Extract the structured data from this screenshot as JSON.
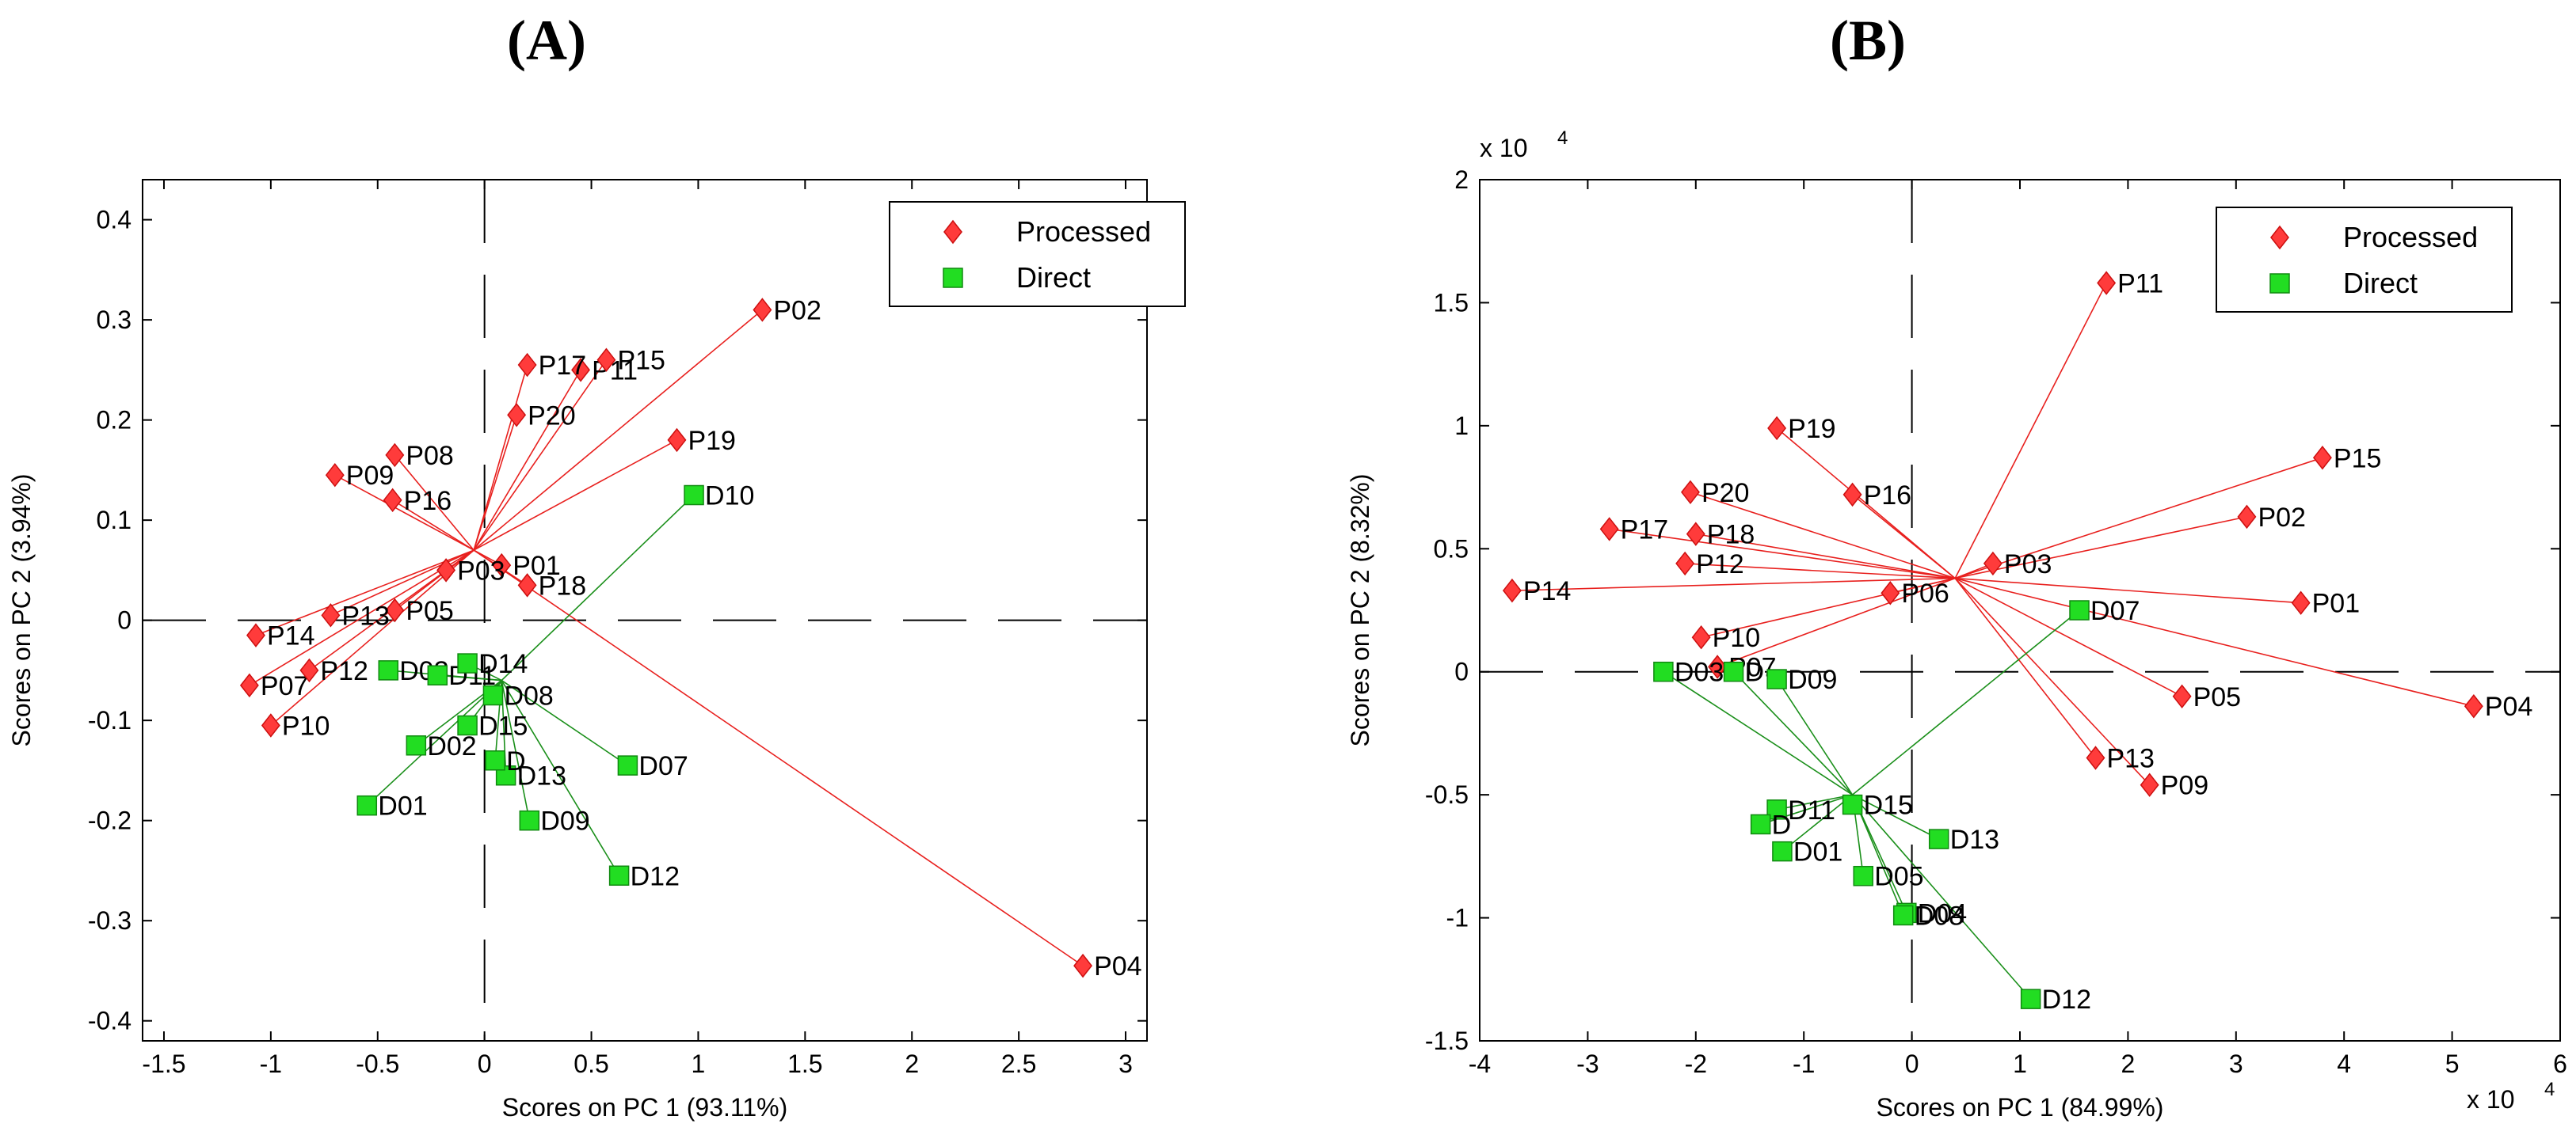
{
  "chart_data": [
    {
      "type": "scatter",
      "panel_label": "(A)",
      "xlabel": "Scores on PC 1 (93.11%)",
      "ylabel": "Scores on PC 2 (3.94%)",
      "xlim": [
        -1.6,
        3.1
      ],
      "ylim": [
        -0.42,
        0.44
      ],
      "xticks": [
        -1.5,
        -1,
        -0.5,
        0,
        0.5,
        1,
        1.5,
        2,
        2.5,
        3
      ],
      "xtick_labels": [
        "-1.5",
        "-1",
        "-0.5",
        "0",
        "0.5",
        "1",
        "1.5",
        "2",
        "2.5",
        "3"
      ],
      "yticks": [
        -0.4,
        -0.3,
        -0.2,
        -0.1,
        0,
        0.1,
        0.2,
        0.3,
        0.4
      ],
      "ytick_labels": [
        "-0.4",
        "-0.3",
        "-0.2",
        "-0.1",
        "0",
        "0.1",
        "0.2",
        "0.3",
        "0.4"
      ],
      "grid": false,
      "legend_position": "top-right",
      "centers": {
        "Processed": [
          -0.05,
          0.07
        ],
        "Direct": [
          0.08,
          -0.06
        ]
      },
      "series": [
        {
          "name": "Processed",
          "marker": "diamond",
          "color": "#ff3b3b",
          "points": [
            {
              "label": "P01",
              "x": 0.08,
              "y": 0.055
            },
            {
              "label": "P02",
              "x": 1.3,
              "y": 0.31
            },
            {
              "label": "P03",
              "x": -0.18,
              "y": 0.05
            },
            {
              "label": "P04",
              "x": 2.8,
              "y": -0.345
            },
            {
              "label": "P05",
              "x": -0.42,
              "y": 0.01
            },
            {
              "label": "P07",
              "x": -1.1,
              "y": -0.065
            },
            {
              "label": "P08",
              "x": -0.42,
              "y": 0.165
            },
            {
              "label": "P09",
              "x": -0.7,
              "y": 0.145
            },
            {
              "label": "P10",
              "x": -1.0,
              "y": -0.105
            },
            {
              "label": "P11",
              "x": 0.45,
              "y": 0.25
            },
            {
              "label": "P12",
              "x": -0.82,
              "y": -0.05
            },
            {
              "label": "P13",
              "x": -0.72,
              "y": 0.005
            },
            {
              "label": "P14",
              "x": -1.07,
              "y": -0.015
            },
            {
              "label": "P15",
              "x": 0.57,
              "y": 0.26
            },
            {
              "label": "P16",
              "x": -0.43,
              "y": 0.12
            },
            {
              "label": "P17",
              "x": 0.2,
              "y": 0.255
            },
            {
              "label": "P18",
              "x": 0.2,
              "y": 0.035
            },
            {
              "label": "P19",
              "x": 0.9,
              "y": 0.18
            },
            {
              "label": "P20",
              "x": 0.15,
              "y": 0.205
            }
          ]
        },
        {
          "name": "Direct",
          "marker": "square",
          "color": "#22dd22",
          "points": [
            {
              "label": "D01",
              "x": -0.55,
              "y": -0.185
            },
            {
              "label": "D02",
              "x": -0.32,
              "y": -0.125
            },
            {
              "label": "D03",
              "x": -0.45,
              "y": -0.05
            },
            {
              "label": "D07",
              "x": 0.67,
              "y": -0.145
            },
            {
              "label": "D08",
              "x": 0.04,
              "y": -0.075
            },
            {
              "label": "D09",
              "x": 0.21,
              "y": -0.2
            },
            {
              "label": "D10",
              "x": 0.98,
              "y": 0.125
            },
            {
              "label": "D11",
              "x": -0.22,
              "y": -0.055
            },
            {
              "label": "D12",
              "x": 0.63,
              "y": -0.255
            },
            {
              "label": "D13",
              "x": 0.1,
              "y": -0.155
            },
            {
              "label": "D14",
              "x": -0.08,
              "y": -0.043
            },
            {
              "label": "D15",
              "x": -0.08,
              "y": -0.105
            },
            {
              "label": "D",
              "x": 0.05,
              "y": -0.14
            }
          ]
        }
      ]
    },
    {
      "type": "scatter",
      "panel_label": "(B)",
      "xlabel": "Scores on PC 1 (84.99%)",
      "ylabel": "Scores on PC 2 (8.32%)",
      "x_multiplier": "x 10",
      "x_multiplier_exp": "4",
      "y_multiplier": "x 10",
      "y_multiplier_exp": "4",
      "xlim": [
        -4,
        6
      ],
      "ylim": [
        -1.5,
        2
      ],
      "xticks": [
        -4,
        -3,
        -2,
        -1,
        0,
        1,
        2,
        3,
        4,
        5,
        6
      ],
      "xtick_labels": [
        "-4",
        "-3",
        "-2",
        "-1",
        "0",
        "1",
        "2",
        "3",
        "4",
        "5",
        "6"
      ],
      "yticks": [
        -1.5,
        -1,
        -0.5,
        0,
        0.5,
        1,
        1.5,
        2
      ],
      "ytick_labels": [
        "-1.5",
        "-1",
        "-0.5",
        "0",
        "0.5",
        "1",
        "1.5",
        "2"
      ],
      "grid": false,
      "legend_position": "top-right",
      "centers": {
        "Processed": [
          0.4,
          0.38
        ],
        "Direct": [
          -0.55,
          -0.5
        ]
      },
      "series": [
        {
          "name": "Processed",
          "marker": "diamond",
          "color": "#ff3b3b",
          "points": [
            {
              "label": "P01",
              "x": 3.6,
              "y": 0.28
            },
            {
              "label": "P02",
              "x": 3.1,
              "y": 0.63
            },
            {
              "label": "P03",
              "x": 0.75,
              "y": 0.44
            },
            {
              "label": "P04",
              "x": 5.2,
              "y": -0.14
            },
            {
              "label": "P05",
              "x": 2.5,
              "y": -0.1
            },
            {
              "label": "P06",
              "x": -0.2,
              "y": 0.32
            },
            {
              "label": "P07",
              "x": -1.8,
              "y": 0.02
            },
            {
              "label": "P09",
              "x": 2.2,
              "y": -0.46
            },
            {
              "label": "P10",
              "x": -1.95,
              "y": 0.14
            },
            {
              "label": "P11",
              "x": 1.8,
              "y": 1.58
            },
            {
              "label": "P12",
              "x": -2.1,
              "y": 0.44
            },
            {
              "label": "P13",
              "x": 1.7,
              "y": -0.35
            },
            {
              "label": "P14",
              "x": -3.7,
              "y": 0.33
            },
            {
              "label": "P15",
              "x": 3.8,
              "y": 0.87
            },
            {
              "label": "P16",
              "x": -0.55,
              "y": 0.72
            },
            {
              "label": "P17",
              "x": -2.8,
              "y": 0.58
            },
            {
              "label": "P18",
              "x": -2.0,
              "y": 0.56
            },
            {
              "label": "P19",
              "x": -1.25,
              "y": 0.99
            },
            {
              "label": "P20",
              "x": -2.05,
              "y": 0.73
            }
          ]
        },
        {
          "name": "Direct",
          "marker": "square",
          "color": "#22dd22",
          "points": [
            {
              "label": "D01",
              "x": -1.2,
              "y": -0.73
            },
            {
              "label": "D03",
              "x": -2.3,
              "y": 0.0
            },
            {
              "label": "D04",
              "x": -0.05,
              "y": -0.98
            },
            {
              "label": "D05",
              "x": -0.45,
              "y": -0.83
            },
            {
              "label": "D07",
              "x": 1.55,
              "y": 0.25
            },
            {
              "label": "D08",
              "x": -0.08,
              "y": -0.99
            },
            {
              "label": "D09",
              "x": -1.25,
              "y": -0.03
            },
            {
              "label": "D11",
              "x": -1.25,
              "y": -0.56
            },
            {
              "label": "D12",
              "x": 1.1,
              "y": -1.33
            },
            {
              "label": "D13",
              "x": 0.25,
              "y": -0.68
            },
            {
              "label": "D15",
              "x": -0.55,
              "y": -0.54
            },
            {
              "label": "D",
              "x": -1.4,
              "y": -0.62
            },
            {
              "label": "D",
              "x": -1.65,
              "y": 0.0
            }
          ]
        }
      ]
    }
  ]
}
